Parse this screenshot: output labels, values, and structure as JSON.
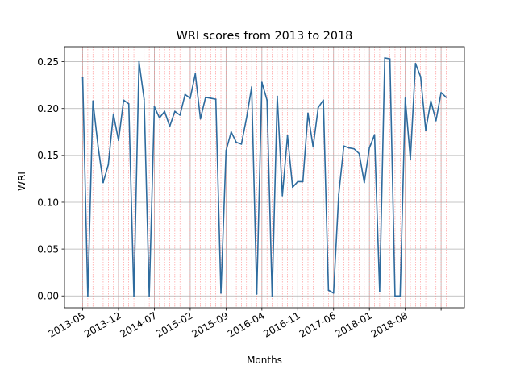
{
  "chart_data": {
    "type": "line",
    "title": "WRI scores from 2013 to 2018",
    "xlabel": "Months",
    "ylabel": "WRI",
    "x_tick_labels": [
      "2013-05",
      "2013-12",
      "2014-07",
      "2015-02",
      "2015-09",
      "2016-04",
      "2016-11",
      "2017-06",
      "2018-01",
      "2018-08"
    ],
    "y_tick_labels": [
      "0.00",
      "0.05",
      "0.10",
      "0.15",
      "0.20",
      "0.25"
    ],
    "ylim": [
      -0.0127,
      0.266
    ],
    "grid": true,
    "line_color": "#2e6b9e",
    "vline_color": "#ff7f7f",
    "series": [
      {
        "values": [
          0.233,
          0.0,
          0.208,
          0.16,
          0.121,
          0.14,
          0.194,
          0.166,
          0.209,
          0.205,
          0.0,
          0.25,
          0.21,
          0.0,
          0.202,
          0.19,
          0.197,
          0.181,
          0.197,
          0.193,
          0.215,
          0.211,
          0.237,
          0.189,
          0.212,
          0.211,
          0.21,
          0.003,
          0.155,
          0.175,
          0.164,
          0.162,
          0.19,
          0.223,
          0.002,
          0.228,
          0.209,
          0.0,
          0.213,
          0.107,
          0.171,
          0.116,
          0.122,
          0.122,
          0.195,
          0.159,
          0.201,
          0.209,
          0.006,
          0.003,
          0.108,
          0.16,
          0.158,
          0.157,
          0.152,
          0.121,
          0.158,
          0.172,
          0.005,
          0.254,
          0.253,
          0.0,
          0.0,
          0.211,
          0.146,
          0.248,
          0.234,
          0.177,
          0.208,
          0.187,
          0.217,
          0.212
        ]
      }
    ]
  }
}
